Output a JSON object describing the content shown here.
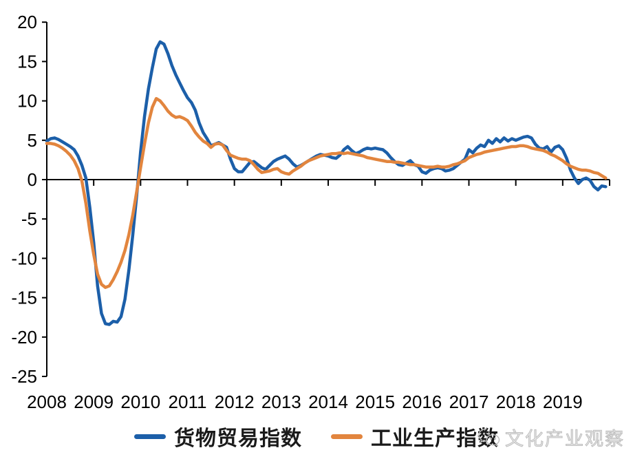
{
  "watermark": {
    "text": "文化产业观察",
    "icon": "wechat-icon",
    "color": "#bdbdbd"
  },
  "chart_data": {
    "type": "line",
    "title": "",
    "xlabel": "",
    "ylabel": "",
    "grid": false,
    "legend_position": "bottom",
    "ylim": [
      -25,
      20
    ],
    "y_tick_step": 5,
    "y_tick_labels": [
      "20",
      "15",
      "10",
      "5",
      "0",
      "-5",
      "-10",
      "-15",
      "-20",
      "-25"
    ],
    "x_tick_labels": [
      "2008",
      "2009",
      "2010",
      "2011",
      "2012",
      "2013",
      "2014",
      "2015",
      "2016",
      "2017",
      "2018",
      "2019"
    ],
    "x_range_months": [
      "2008-01",
      "2019-12"
    ],
    "axis_color": "#000000",
    "series": [
      {
        "name": "货物贸易指数",
        "color": "#1c5fa9",
        "values": [
          4.9,
          5.2,
          5.3,
          5.1,
          4.8,
          4.5,
          4.2,
          3.8,
          3.0,
          1.8,
          0.2,
          -3.5,
          -8.0,
          -13.5,
          -17.0,
          -18.3,
          -18.4,
          -18.0,
          -18.1,
          -17.4,
          -15.2,
          -11.5,
          -7.0,
          -2.0,
          3.5,
          8.0,
          11.5,
          14.2,
          16.6,
          17.5,
          17.2,
          16.0,
          14.5,
          13.3,
          12.3,
          11.3,
          10.4,
          9.8,
          8.8,
          7.2,
          6.0,
          5.2,
          4.3,
          4.5,
          4.7,
          4.4,
          4.1,
          2.6,
          1.4,
          1.0,
          1.0,
          1.6,
          2.2,
          2.3,
          1.9,
          1.5,
          1.3,
          1.8,
          2.3,
          2.6,
          2.8,
          3.0,
          2.6,
          2.0,
          1.6,
          1.8,
          2.1,
          2.4,
          2.7,
          3.0,
          3.2,
          3.1,
          3.0,
          2.8,
          2.7,
          3.1,
          3.8,
          4.2,
          3.7,
          3.3,
          3.5,
          3.8,
          4.0,
          3.9,
          4.0,
          3.9,
          3.8,
          3.4,
          2.8,
          2.3,
          1.9,
          1.8,
          2.1,
          2.4,
          1.9,
          1.7,
          1.0,
          0.8,
          1.2,
          1.4,
          1.5,
          1.4,
          1.1,
          1.2,
          1.4,
          1.8,
          2.2,
          2.6,
          3.8,
          3.4,
          4.0,
          4.4,
          4.2,
          5.0,
          4.6,
          5.2,
          4.8,
          5.3,
          4.9,
          5.2,
          5.0,
          5.2,
          5.4,
          5.5,
          5.3,
          4.5,
          4.0,
          3.9,
          4.2,
          3.5,
          4.1,
          4.3,
          3.8,
          2.7,
          1.2,
          0.2,
          -0.5,
          0.0,
          0.2,
          -0.1,
          -0.9,
          -1.3,
          -0.8,
          -0.9
        ]
      },
      {
        "name": "工业生产指数",
        "color": "#e2853e",
        "values": [
          4.6,
          4.6,
          4.5,
          4.3,
          4.0,
          3.6,
          3.1,
          2.4,
          1.4,
          -0.2,
          -3.0,
          -6.5,
          -9.5,
          -12.0,
          -13.3,
          -13.7,
          -13.5,
          -12.7,
          -11.7,
          -10.5,
          -9.0,
          -7.0,
          -4.5,
          -1.5,
          1.5,
          4.5,
          7.2,
          9.2,
          10.3,
          10.0,
          9.4,
          8.7,
          8.2,
          7.9,
          8.0,
          7.8,
          7.5,
          6.8,
          6.0,
          5.4,
          4.9,
          4.6,
          4.1,
          4.5,
          4.6,
          4.4,
          3.7,
          3.1,
          2.9,
          2.7,
          2.6,
          2.6,
          2.4,
          1.9,
          1.3,
          0.9,
          1.0,
          1.1,
          1.3,
          1.4,
          1.0,
          0.8,
          0.7,
          1.1,
          1.4,
          1.7,
          2.1,
          2.4,
          2.6,
          2.8,
          3.0,
          3.1,
          3.2,
          3.3,
          3.3,
          3.4,
          3.3,
          3.4,
          3.3,
          3.2,
          3.1,
          3.0,
          2.8,
          2.7,
          2.6,
          2.5,
          2.4,
          2.3,
          2.3,
          2.2,
          2.2,
          2.1,
          2.0,
          1.9,
          1.9,
          1.8,
          1.7,
          1.6,
          1.6,
          1.6,
          1.7,
          1.6,
          1.6,
          1.7,
          1.9,
          2.0,
          2.2,
          2.4,
          2.8,
          3.0,
          3.2,
          3.3,
          3.5,
          3.6,
          3.7,
          3.8,
          3.9,
          4.0,
          4.1,
          4.2,
          4.2,
          4.3,
          4.3,
          4.2,
          4.0,
          3.9,
          3.8,
          3.7,
          3.5,
          3.2,
          3.0,
          2.7,
          2.4,
          2.0,
          1.7,
          1.5,
          1.3,
          1.2,
          1.2,
          1.1,
          0.9,
          0.8,
          0.5,
          0.2
        ]
      }
    ]
  }
}
